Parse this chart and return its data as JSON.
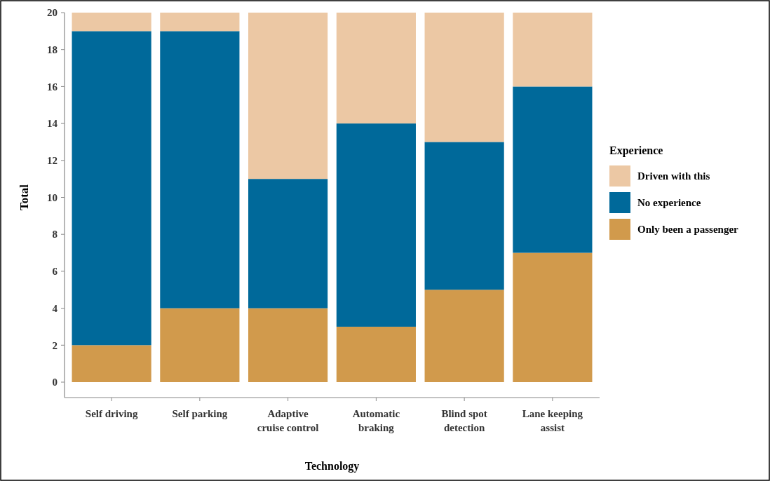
{
  "chart_data": {
    "type": "bar",
    "stacked": true,
    "xlabel": "Technology",
    "ylabel": "Total",
    "legend_title": "Experience",
    "legend": "right",
    "categories": [
      "Self driving",
      "Self parking",
      "Adaptive cruise control",
      "Automatic braking",
      "Blind spot detection",
      "Lane keeping assist"
    ],
    "series": [
      {
        "name": "Only been a passenger",
        "color": "#d19a4c",
        "values": [
          2,
          4,
          4,
          3,
          5,
          7
        ]
      },
      {
        "name": "No experience",
        "color": "#00699a",
        "values": [
          17,
          15,
          7,
          11,
          8,
          9
        ]
      },
      {
        "name": "Driven with this",
        "color": "#ecc8a4",
        "values": [
          1,
          1,
          9,
          6,
          7,
          4
        ]
      }
    ],
    "ylim": [
      0,
      20
    ],
    "yticks": [
      0,
      2,
      4,
      6,
      8,
      10,
      12,
      14,
      16,
      18,
      20
    ],
    "grid": false
  }
}
